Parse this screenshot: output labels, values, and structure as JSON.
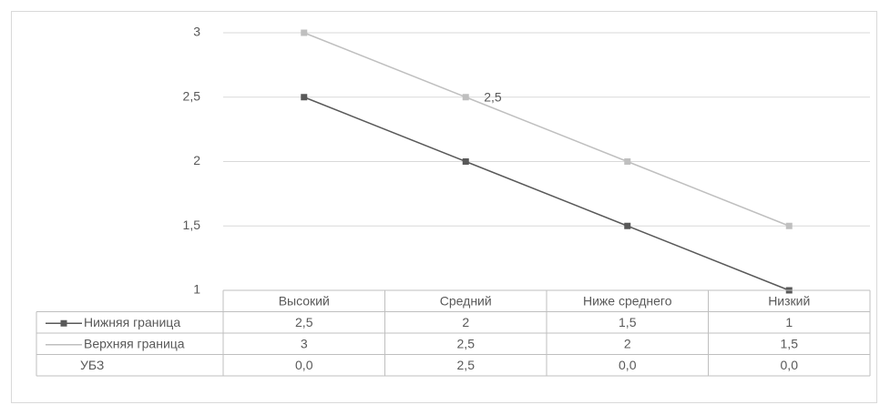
{
  "chart_data": {
    "type": "line",
    "categories": [
      "Высокий",
      "Средний",
      "Ниже среднего",
      "Низкий"
    ],
    "series": [
      {
        "name": "Нижняя граница",
        "color": "#595959",
        "values": [
          2.5,
          2,
          1.5,
          1
        ],
        "value_labels": [
          "2,5",
          "2",
          "1,5",
          "1"
        ]
      },
      {
        "name": "Верхняя граница",
        "color": "#bfbfbf",
        "values": [
          3,
          2.5,
          2,
          1.5
        ],
        "value_labels": [
          "3",
          "2,5",
          "2",
          "1,5"
        ]
      },
      {
        "name": "УБЗ",
        "values": [
          0,
          2.5,
          0,
          0
        ],
        "value_labels": [
          "0,0",
          "2,5",
          "0,0",
          "0,0"
        ]
      }
    ],
    "ylim": [
      1,
      3
    ],
    "yticks": [
      {
        "value": 1,
        "label": "1"
      },
      {
        "value": 1.5,
        "label": "1,5"
      },
      {
        "value": 2,
        "label": "2"
      },
      {
        "value": 2.5,
        "label": "2,5"
      },
      {
        "value": 3,
        "label": "3"
      }
    ],
    "grid": true,
    "data_table": true
  }
}
